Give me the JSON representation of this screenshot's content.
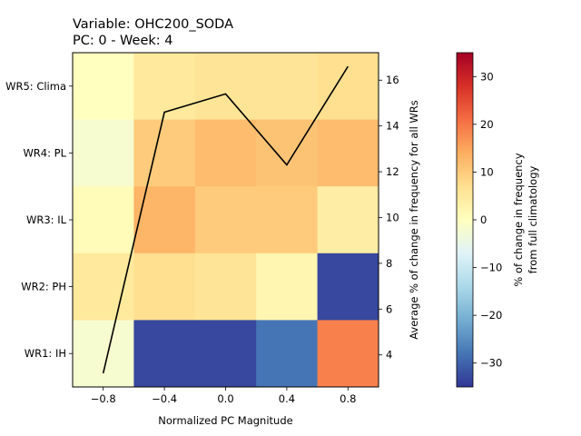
{
  "chart_data": {
    "type": "heatmap",
    "title_line1": "Variable: OHC200_SODA",
    "title_line2": "PC: 0 - Week: 4",
    "xlabel": "Normalized PC Magnitude",
    "y2label": "Average % of change in frequency for all WRs",
    "colorbar_label_line1": "% of change in frequency",
    "colorbar_label_line2": "from full climatology",
    "x_bin_centers": [
      -0.8,
      -0.4,
      0.0,
      0.4,
      0.8
    ],
    "x_tick_values": [
      -0.8,
      -0.4,
      0.0,
      0.4,
      0.8
    ],
    "x_tick_labels": [
      "−0.8",
      "−0.4",
      "0.0",
      "0.4",
      "0.8"
    ],
    "xlim": [
      -1.0,
      1.0
    ],
    "rows": [
      "WR5: Clima",
      "WR4: PL",
      "WR3: IL",
      "WR2: PH",
      "WR1: IH"
    ],
    "values": [
      [
        0,
        5,
        6,
        6,
        7
      ],
      [
        -2,
        10,
        12,
        11,
        12
      ],
      [
        1,
        13,
        10,
        10,
        4
      ],
      [
        5,
        7,
        6,
        2,
        -33
      ],
      [
        -2,
        -33,
        -33,
        -28,
        19
      ]
    ],
    "colorbar_range": [
      -35,
      35
    ],
    "colorbar_ticks": [
      30,
      20,
      10,
      0,
      -10,
      -20,
      -30
    ],
    "colorbar_tick_labels": [
      "30",
      "20",
      "10",
      "0",
      "−10",
      "−20",
      "−30"
    ],
    "colormap": "RdYlBu_r",
    "line_series": {
      "x": [
        -0.8,
        -0.4,
        0.0,
        0.4,
        0.8
      ],
      "y": [
        3.2,
        14.6,
        15.4,
        12.3,
        16.6
      ],
      "color": "#000000"
    },
    "y2_range": [
      2.6,
      17.2
    ],
    "y2_ticks": [
      4,
      6,
      8,
      10,
      12,
      14,
      16
    ],
    "grid": false
  }
}
